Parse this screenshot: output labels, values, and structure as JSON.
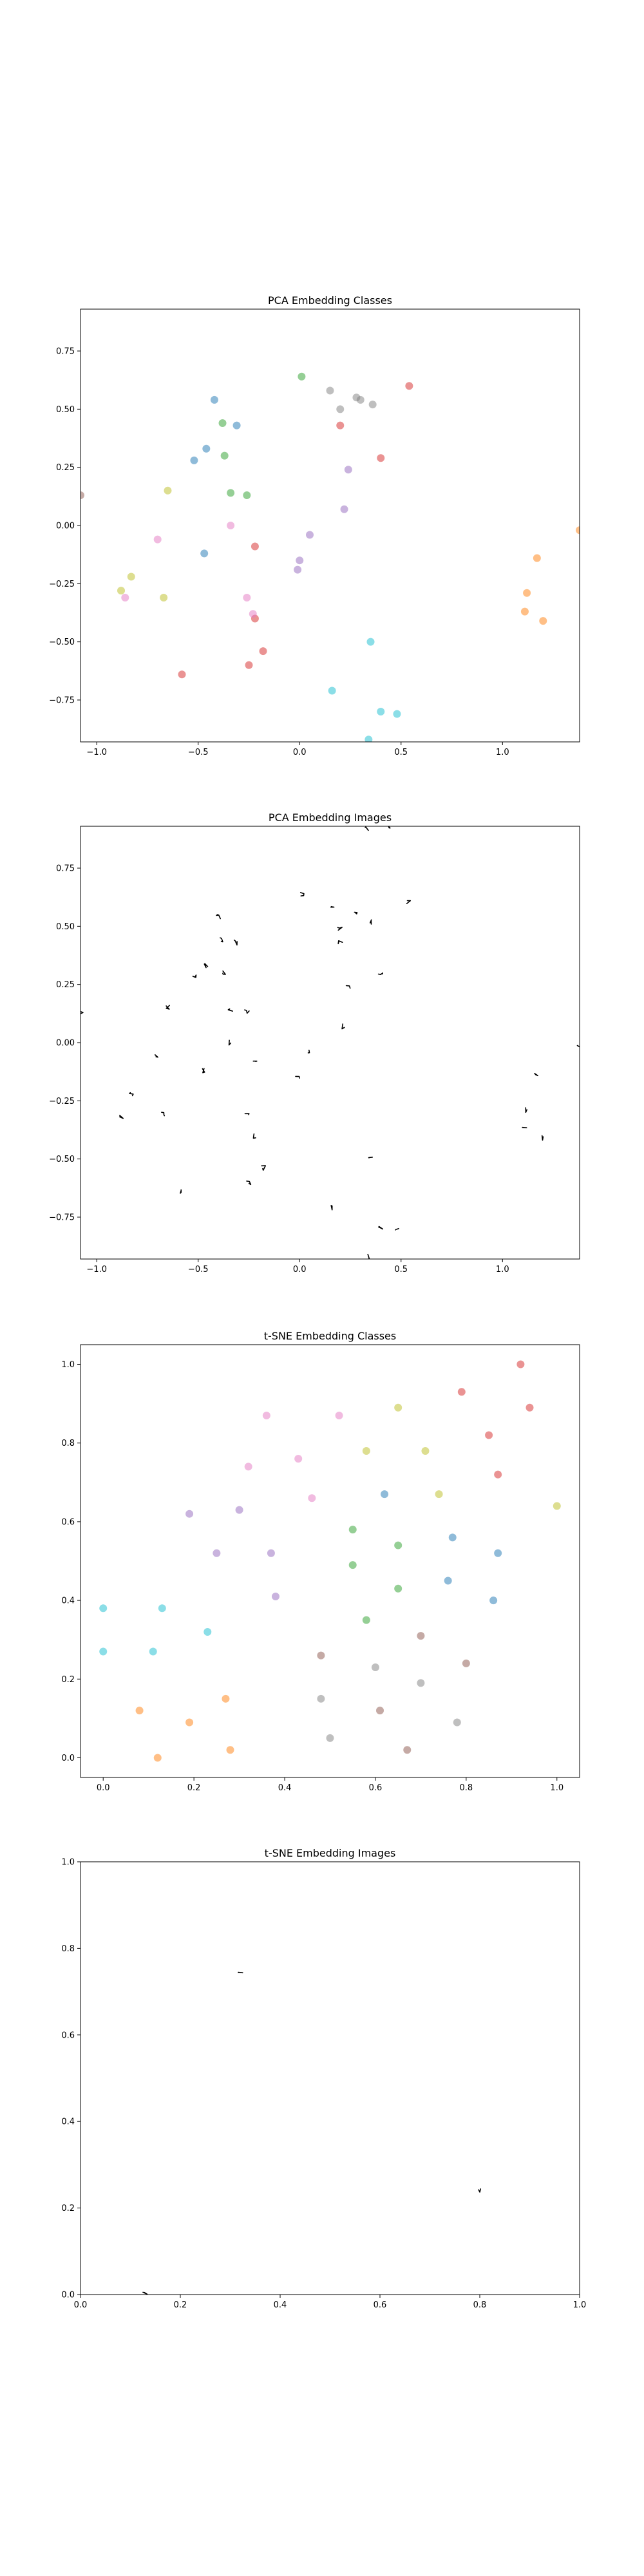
{
  "figure": {
    "background": "#ffffff"
  },
  "palette": {
    "red": "#d62728",
    "orange": "#ff7f0e",
    "yellow": "#bcbd22",
    "green": "#2ca02c",
    "cyan": "#17becf",
    "blue": "#1f77b4",
    "purple": "#9467bd",
    "pink": "#e377c2",
    "brown": "#8c564b",
    "gray": "#7f7f7f"
  },
  "chart_data": [
    {
      "type": "scatter",
      "title": "PCA Embedding Classes",
      "xlim": [
        -1.08,
        1.38
      ],
      "ylim": [
        -0.93,
        0.93
      ],
      "xticks": [
        -1.0,
        -0.5,
        0.0,
        0.5,
        1.0
      ],
      "xtick_labels": [
        "−1.0",
        "−0.5",
        "0.0",
        "0.5",
        "1.0"
      ],
      "yticks": [
        -0.75,
        -0.5,
        -0.25,
        0.0,
        0.25,
        0.5,
        0.75
      ],
      "ytick_labels": [
        "−0.75",
        "−0.50",
        "−0.25",
        "0.00",
        "0.25",
        "0.50",
        "0.75"
      ],
      "grid": false,
      "marker_alpha": 0.5,
      "points": [
        {
          "x": -0.42,
          "y": 0.54,
          "c": "blue"
        },
        {
          "x": -0.46,
          "y": 0.33,
          "c": "blue"
        },
        {
          "x": -0.52,
          "y": 0.28,
          "c": "blue"
        },
        {
          "x": -0.31,
          "y": 0.43,
          "c": "blue"
        },
        {
          "x": -0.47,
          "y": -0.12,
          "c": "blue"
        },
        {
          "x": 0.01,
          "y": 0.64,
          "c": "green"
        },
        {
          "x": -0.38,
          "y": 0.44,
          "c": "green"
        },
        {
          "x": -0.37,
          "y": 0.3,
          "c": "green"
        },
        {
          "x": -0.34,
          "y": 0.14,
          "c": "green"
        },
        {
          "x": -0.26,
          "y": 0.13,
          "c": "green"
        },
        {
          "x": -0.65,
          "y": 0.15,
          "c": "yellow"
        },
        {
          "x": -0.83,
          "y": -0.22,
          "c": "yellow"
        },
        {
          "x": -0.67,
          "y": -0.31,
          "c": "yellow"
        },
        {
          "x": -0.88,
          "y": -0.28,
          "c": "yellow"
        },
        {
          "x": 0.15,
          "y": 0.58,
          "c": "gray"
        },
        {
          "x": 0.28,
          "y": 0.55,
          "c": "gray"
        },
        {
          "x": 0.3,
          "y": 0.54,
          "c": "gray"
        },
        {
          "x": 0.36,
          "y": 0.52,
          "c": "gray"
        },
        {
          "x": 0.2,
          "y": 0.5,
          "c": "gray"
        },
        {
          "x": 0.54,
          "y": 0.6,
          "c": "red"
        },
        {
          "x": 0.2,
          "y": 0.43,
          "c": "red"
        },
        {
          "x": 0.4,
          "y": 0.29,
          "c": "red"
        },
        {
          "x": -0.22,
          "y": -0.09,
          "c": "red"
        },
        {
          "x": -0.22,
          "y": -0.4,
          "c": "red"
        },
        {
          "x": -0.25,
          "y": -0.6,
          "c": "red"
        },
        {
          "x": -0.18,
          "y": -0.54,
          "c": "red"
        },
        {
          "x": -0.58,
          "y": -0.64,
          "c": "red"
        },
        {
          "x": 0.24,
          "y": 0.24,
          "c": "purple"
        },
        {
          "x": 0.22,
          "y": 0.07,
          "c": "purple"
        },
        {
          "x": 0.05,
          "y": -0.04,
          "c": "purple"
        },
        {
          "x": 0.0,
          "y": -0.15,
          "c": "purple"
        },
        {
          "x": -0.01,
          "y": -0.19,
          "c": "purple"
        },
        {
          "x": -0.34,
          "y": 0.0,
          "c": "pink"
        },
        {
          "x": -0.7,
          "y": -0.06,
          "c": "pink"
        },
        {
          "x": -0.26,
          "y": -0.31,
          "c": "pink"
        },
        {
          "x": -0.23,
          "y": -0.38,
          "c": "pink"
        },
        {
          "x": -0.86,
          "y": -0.31,
          "c": "pink"
        },
        {
          "x": 1.12,
          "y": -0.29,
          "c": "orange"
        },
        {
          "x": 1.17,
          "y": -0.14,
          "c": "orange"
        },
        {
          "x": 1.11,
          "y": -0.37,
          "c": "orange"
        },
        {
          "x": 1.2,
          "y": -0.41,
          "c": "orange"
        },
        {
          "x": 1.38,
          "y": -0.02,
          "c": "orange"
        },
        {
          "x": 0.35,
          "y": -0.5,
          "c": "cyan"
        },
        {
          "x": 0.16,
          "y": -0.71,
          "c": "cyan"
        },
        {
          "x": 0.4,
          "y": -0.8,
          "c": "cyan"
        },
        {
          "x": 0.48,
          "y": -0.81,
          "c": "cyan"
        },
        {
          "x": 0.34,
          "y": -0.92,
          "c": "cyan"
        },
        {
          "x": -1.08,
          "y": 0.13,
          "c": "brown"
        }
      ]
    },
    {
      "type": "scatter",
      "title": "PCA Embedding Images",
      "xlim": [
        -1.08,
        1.38
      ],
      "ylim": [
        -0.93,
        0.93
      ],
      "xticks": [
        -1.0,
        -0.5,
        0.0,
        0.5,
        1.0
      ],
      "xtick_labels": [
        "−1.0",
        "−0.5",
        "0.0",
        "0.5",
        "1.0"
      ],
      "yticks": [
        -0.75,
        -0.5,
        -0.25,
        0.0,
        0.25,
        0.5,
        0.75
      ],
      "ytick_labels": [
        "−0.75",
        "−0.50",
        "−0.25",
        "0.00",
        "0.25",
        "0.50",
        "0.75"
      ],
      "grid": false,
      "marker": "tiny digit image",
      "points": [
        {
          "x": -0.4,
          "y": 0.54
        },
        {
          "x": -0.46,
          "y": 0.33
        },
        {
          "x": -0.52,
          "y": 0.28
        },
        {
          "x": -0.31,
          "y": 0.43
        },
        {
          "x": -0.47,
          "y": -0.12
        },
        {
          "x": 0.01,
          "y": 0.64
        },
        {
          "x": -0.38,
          "y": 0.44
        },
        {
          "x": -0.37,
          "y": 0.3
        },
        {
          "x": -0.34,
          "y": 0.14
        },
        {
          "x": -0.26,
          "y": 0.13
        },
        {
          "x": -0.65,
          "y": 0.15
        },
        {
          "x": -0.83,
          "y": -0.22
        },
        {
          "x": -0.67,
          "y": -0.31
        },
        {
          "x": -0.88,
          "y": -0.32
        },
        {
          "x": 0.16,
          "y": 0.58
        },
        {
          "x": 0.28,
          "y": 0.55
        },
        {
          "x": 0.36,
          "y": 0.52
        },
        {
          "x": 0.2,
          "y": 0.49
        },
        {
          "x": 0.54,
          "y": 0.6
        },
        {
          "x": 0.2,
          "y": 0.43
        },
        {
          "x": 0.4,
          "y": 0.29
        },
        {
          "x": -0.22,
          "y": -0.09
        },
        {
          "x": -0.22,
          "y": -0.4
        },
        {
          "x": -0.25,
          "y": -0.6
        },
        {
          "x": -0.18,
          "y": -0.54
        },
        {
          "x": -0.58,
          "y": -0.64
        },
        {
          "x": 0.24,
          "y": 0.24
        },
        {
          "x": 0.22,
          "y": 0.07
        },
        {
          "x": 0.05,
          "y": -0.04
        },
        {
          "x": -0.01,
          "y": -0.15
        },
        {
          "x": -0.34,
          "y": 0.0
        },
        {
          "x": -0.7,
          "y": -0.06
        },
        {
          "x": -0.26,
          "y": -0.31
        },
        {
          "x": 1.12,
          "y": -0.29
        },
        {
          "x": 1.17,
          "y": -0.14
        },
        {
          "x": 1.11,
          "y": -0.37
        },
        {
          "x": 1.2,
          "y": -0.41
        },
        {
          "x": 1.38,
          "y": -0.02
        },
        {
          "x": 0.35,
          "y": -0.5
        },
        {
          "x": 0.16,
          "y": -0.71
        },
        {
          "x": 0.4,
          "y": -0.8
        },
        {
          "x": 0.48,
          "y": -0.81
        },
        {
          "x": 0.34,
          "y": -0.92
        },
        {
          "x": -1.08,
          "y": 0.13
        },
        {
          "x": 0.33,
          "y": 0.92
        },
        {
          "x": 0.44,
          "y": 0.93
        }
      ]
    },
    {
      "type": "scatter",
      "title": "t-SNE Embedding Classes",
      "xlim": [
        -0.05,
        1.05
      ],
      "ylim": [
        -0.05,
        1.05
      ],
      "xticks": [
        0.0,
        0.2,
        0.4,
        0.6,
        0.8,
        1.0
      ],
      "xtick_labels": [
        "0.0",
        "0.2",
        "0.4",
        "0.6",
        "0.8",
        "1.0"
      ],
      "yticks": [
        0.0,
        0.2,
        0.4,
        0.6,
        0.8,
        1.0
      ],
      "ytick_labels": [
        "0.0",
        "0.2",
        "0.4",
        "0.6",
        "0.8",
        "1.0"
      ],
      "grid": false,
      "marker_alpha": 0.5,
      "points": [
        {
          "x": 0.92,
          "y": 1.0,
          "c": "red"
        },
        {
          "x": 0.94,
          "y": 0.89,
          "c": "red"
        },
        {
          "x": 0.79,
          "y": 0.93,
          "c": "red"
        },
        {
          "x": 0.85,
          "y": 0.82,
          "c": "red"
        },
        {
          "x": 0.87,
          "y": 0.72,
          "c": "red"
        },
        {
          "x": 0.36,
          "y": 0.87,
          "c": "pink"
        },
        {
          "x": 0.52,
          "y": 0.87,
          "c": "pink"
        },
        {
          "x": 0.32,
          "y": 0.74,
          "c": "pink"
        },
        {
          "x": 0.43,
          "y": 0.76,
          "c": "pink"
        },
        {
          "x": 0.46,
          "y": 0.66,
          "c": "pink"
        },
        {
          "x": 0.65,
          "y": 0.89,
          "c": "yellow"
        },
        {
          "x": 0.58,
          "y": 0.78,
          "c": "yellow"
        },
        {
          "x": 0.71,
          "y": 0.78,
          "c": "yellow"
        },
        {
          "x": 0.74,
          "y": 0.67,
          "c": "yellow"
        },
        {
          "x": 1.0,
          "y": 0.64,
          "c": "yellow"
        },
        {
          "x": 0.62,
          "y": 0.67,
          "c": "blue"
        },
        {
          "x": 0.77,
          "y": 0.56,
          "c": "blue"
        },
        {
          "x": 0.87,
          "y": 0.52,
          "c": "blue"
        },
        {
          "x": 0.76,
          "y": 0.45,
          "c": "blue"
        },
        {
          "x": 0.86,
          "y": 0.4,
          "c": "blue"
        },
        {
          "x": 0.55,
          "y": 0.58,
          "c": "green"
        },
        {
          "x": 0.65,
          "y": 0.54,
          "c": "green"
        },
        {
          "x": 0.55,
          "y": 0.49,
          "c": "green"
        },
        {
          "x": 0.65,
          "y": 0.43,
          "c": "green"
        },
        {
          "x": 0.58,
          "y": 0.35,
          "c": "green"
        },
        {
          "x": 0.19,
          "y": 0.62,
          "c": "purple"
        },
        {
          "x": 0.3,
          "y": 0.63,
          "c": "purple"
        },
        {
          "x": 0.25,
          "y": 0.52,
          "c": "purple"
        },
        {
          "x": 0.37,
          "y": 0.52,
          "c": "purple"
        },
        {
          "x": 0.38,
          "y": 0.41,
          "c": "purple"
        },
        {
          "x": 0.0,
          "y": 0.38,
          "c": "cyan"
        },
        {
          "x": 0.13,
          "y": 0.38,
          "c": "cyan"
        },
        {
          "x": 0.0,
          "y": 0.27,
          "c": "cyan"
        },
        {
          "x": 0.11,
          "y": 0.27,
          "c": "cyan"
        },
        {
          "x": 0.23,
          "y": 0.32,
          "c": "cyan"
        },
        {
          "x": 0.7,
          "y": 0.31,
          "c": "brown"
        },
        {
          "x": 0.48,
          "y": 0.26,
          "c": "brown"
        },
        {
          "x": 0.8,
          "y": 0.24,
          "c": "brown"
        },
        {
          "x": 0.61,
          "y": 0.12,
          "c": "brown"
        },
        {
          "x": 0.67,
          "y": 0.02,
          "c": "brown"
        },
        {
          "x": 0.6,
          "y": 0.23,
          "c": "gray"
        },
        {
          "x": 0.48,
          "y": 0.15,
          "c": "gray"
        },
        {
          "x": 0.7,
          "y": 0.19,
          "c": "gray"
        },
        {
          "x": 0.5,
          "y": 0.05,
          "c": "gray"
        },
        {
          "x": 0.78,
          "y": 0.09,
          "c": "gray"
        },
        {
          "x": 0.27,
          "y": 0.15,
          "c": "orange"
        },
        {
          "x": 0.08,
          "y": 0.12,
          "c": "orange"
        },
        {
          "x": 0.19,
          "y": 0.09,
          "c": "orange"
        },
        {
          "x": 0.12,
          "y": 0.0,
          "c": "orange"
        },
        {
          "x": 0.28,
          "y": 0.02,
          "c": "orange"
        }
      ]
    },
    {
      "type": "scatter",
      "title": "t-SNE Embedding Images",
      "xlim": [
        0.0,
        1.0
      ],
      "ylim": [
        0.0,
        1.0
      ],
      "xticks": [
        0.0,
        0.2,
        0.4,
        0.6,
        0.8,
        1.0
      ],
      "xtick_labels": [
        "0.0",
        "0.2",
        "0.4",
        "0.6",
        "0.8",
        "1.0"
      ],
      "yticks": [
        0.0,
        0.2,
        0.4,
        0.6,
        0.8,
        1.0
      ],
      "ytick_labels": [
        "0.0",
        "0.2",
        "0.4",
        "0.6",
        "0.8",
        "1.0"
      ],
      "grid": false,
      "marker": "tiny digit image",
      "points": [
        {
          "x": 0.32,
          "y": 0.74
        },
        {
          "x": 0.8,
          "y": 0.24
        },
        {
          "x": 0.13,
          "y": 0.0
        }
      ]
    }
  ]
}
